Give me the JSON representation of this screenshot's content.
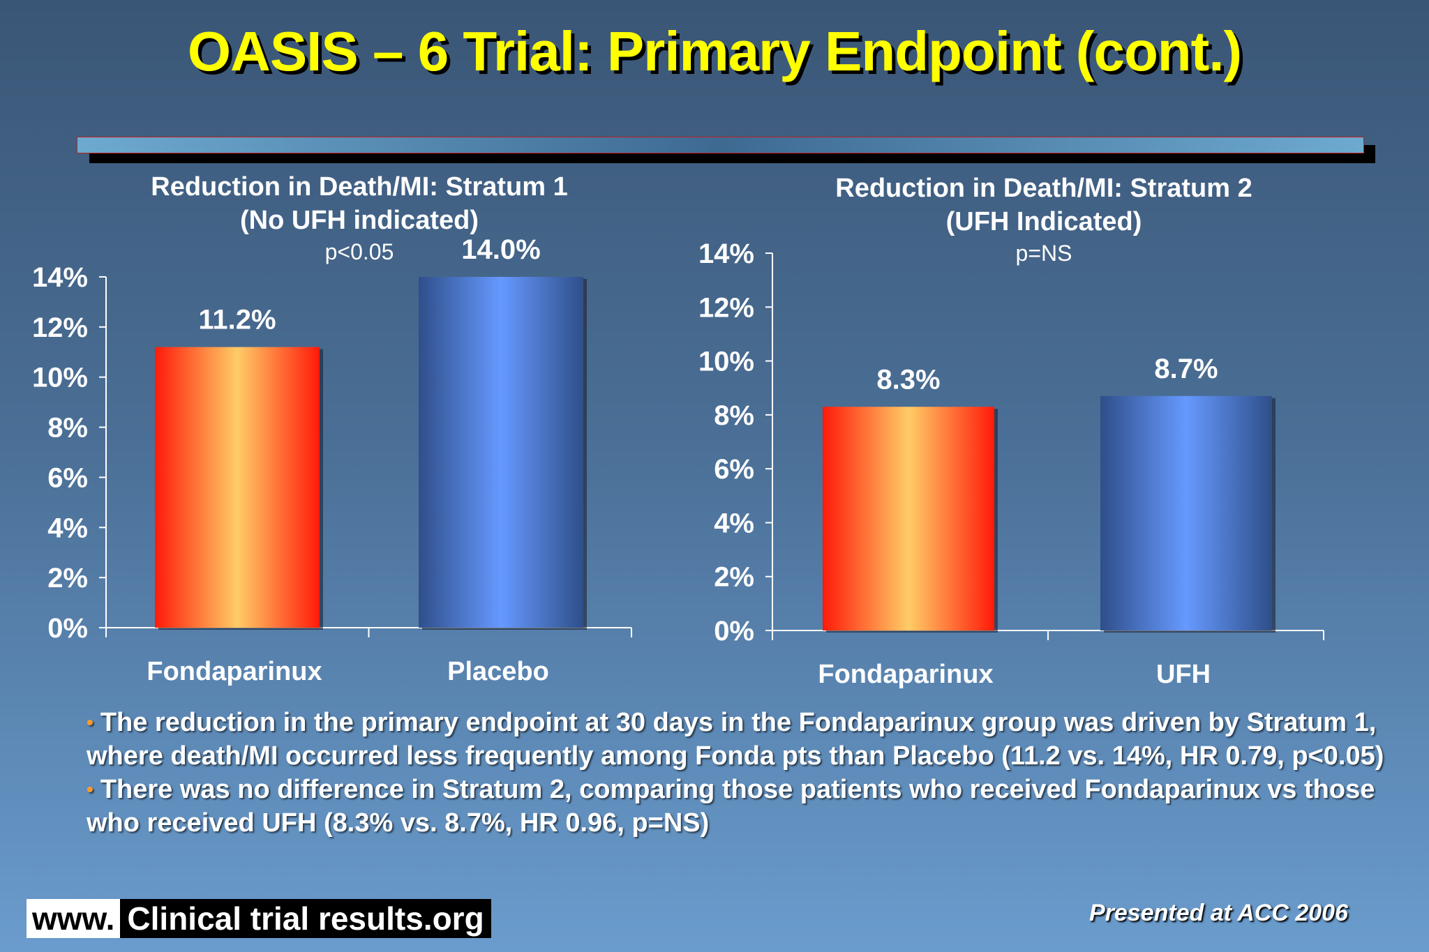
{
  "slide_title": "OASIS – 6 Trial: Primary Endpoint (cont.)",
  "chart_data": [
    {
      "type": "bar",
      "title": "Reduction in Death/MI: Stratum 1",
      "subtitle": "(No UFH indicated)",
      "pvalue": "p<0.05",
      "categories": [
        "Fondaparinux",
        "Placebo"
      ],
      "values": [
        11.2,
        14.0
      ],
      "value_labels": [
        "11.2%",
        "14.0%"
      ],
      "bar_colors": [
        "#ff2a12",
        "#5b88e4"
      ],
      "ylim": [
        0,
        14
      ],
      "yticks": [
        "0%",
        "2%",
        "4%",
        "6%",
        "8%",
        "10%",
        "12%",
        "14%"
      ],
      "grid": false
    },
    {
      "type": "bar",
      "title": "Reduction in Death/MI: Stratum 2",
      "subtitle": "(UFH Indicated)",
      "pvalue": "p=NS",
      "categories": [
        "Fondaparinux",
        "UFH"
      ],
      "values": [
        8.3,
        8.7
      ],
      "value_labels": [
        "8.3%",
        "8.7%"
      ],
      "bar_colors": [
        "#ff2a12",
        "#5b88e4"
      ],
      "ylim": [
        0,
        14
      ],
      "yticks": [
        "0%",
        "2%",
        "4%",
        "6%",
        "8%",
        "10%",
        "12%",
        "14%"
      ],
      "grid": false
    }
  ],
  "bullets": [
    "The reduction in the primary endpoint at 30 days in the Fondaparinux group was driven by Stratum 1, where death/MI occurred less frequently among Fonda pts than Placebo (11.2 vs. 14%, HR 0.79, p<0.05)",
    "There was no difference in Stratum 2, comparing those patients who received Fondaparinux vs those who received UFH (8.3% vs. 8.7%, HR 0.96, p=NS)"
  ],
  "footer": {
    "www": "www.",
    "site": "Clinical trial results.org",
    "presented": "Presented at ACC 2006"
  },
  "colors": {
    "title": "#ffff00",
    "bullet": "#ff9a2a",
    "red_bar": "#ff2a12",
    "blue_bar": "#5b88e4"
  }
}
